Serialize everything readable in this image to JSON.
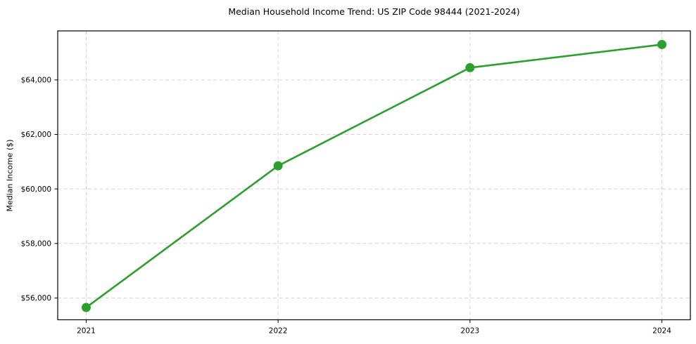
{
  "chart_data": {
    "type": "line",
    "title": "Median Household Income Trend: US ZIP Code 98444 (2021-2024)",
    "xlabel": "",
    "ylabel": "Median Income ($)",
    "x": [
      "2021",
      "2022",
      "2023",
      "2024"
    ],
    "series": [
      {
        "name": "Median Household Income",
        "values": [
          55650,
          60850,
          64450,
          65300
        ],
        "color": "#2ca02c",
        "marker": "circle",
        "marker_radius": 6.5,
        "line_width": 2.6
      }
    ],
    "ylim": [
      55200,
      65800
    ],
    "yticks": [
      56000,
      58000,
      60000,
      62000,
      64000
    ],
    "ytick_labels": [
      "$56,000",
      "$58,000",
      "$60,000",
      "$62,000",
      "$64,000"
    ],
    "xtick_labels": [
      "2021",
      "2022",
      "2023",
      "2024"
    ],
    "grid": {
      "show": true,
      "style": "dashed",
      "color": "#d4d4d4"
    },
    "legend": "none",
    "axes": {
      "spine_color": "#000000",
      "tick_color": "#000000",
      "background": "#ffffff"
    }
  }
}
